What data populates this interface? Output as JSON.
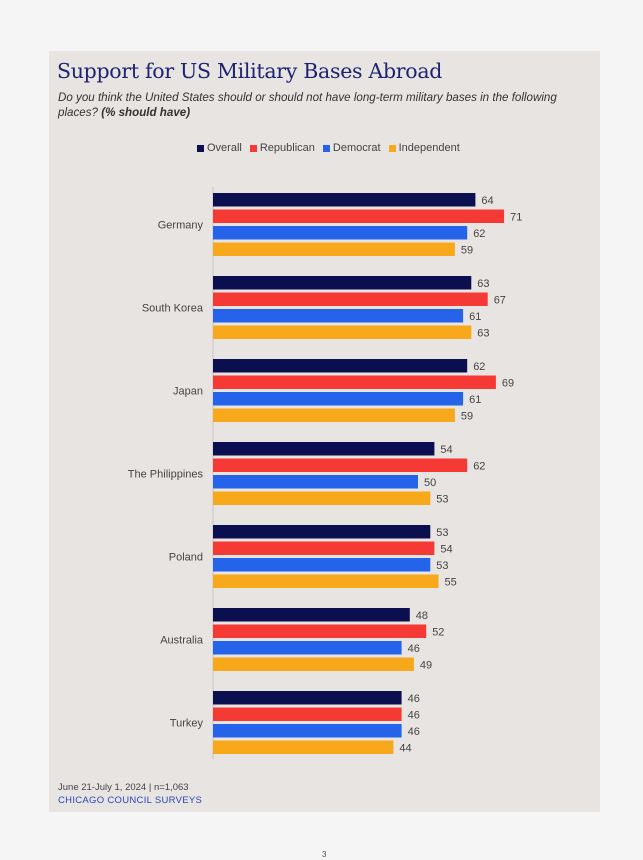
{
  "page": {
    "number": "3"
  },
  "header": {
    "title": "Support for US Military Bases Abroad",
    "subtitle": "Do you think the United States should or should not have long-term military bases in the following places?",
    "subtitle_emphasis": "(% should have)"
  },
  "footer": {
    "date_note": "June 21-July 1, 2024 | n=1,063",
    "source": "CHICAGO COUNCIL SURVEYS"
  },
  "chart_data": {
    "type": "bar",
    "orientation": "horizontal",
    "title": "Support for US Military Bases Abroad",
    "xlabel": "",
    "ylabel": "",
    "xlim": [
      0,
      100
    ],
    "grid": false,
    "legend_position": "top-center",
    "categories": [
      "Germany",
      "South Korea",
      "Japan",
      "The Philippines",
      "Poland",
      "Australia",
      "Turkey"
    ],
    "series": [
      {
        "name": "Overall",
        "color": "#0c0f4f",
        "values": [
          64,
          63,
          62,
          54,
          53,
          48,
          46
        ]
      },
      {
        "name": "Republican",
        "color": "#f53a36",
        "values": [
          71,
          67,
          69,
          62,
          54,
          52,
          46
        ]
      },
      {
        "name": "Democrat",
        "color": "#2563ea",
        "values": [
          62,
          61,
          61,
          50,
          53,
          46,
          46
        ]
      },
      {
        "name": "Independent",
        "color": "#f8a81b",
        "values": [
          59,
          63,
          59,
          53,
          55,
          49,
          44
        ]
      }
    ]
  }
}
